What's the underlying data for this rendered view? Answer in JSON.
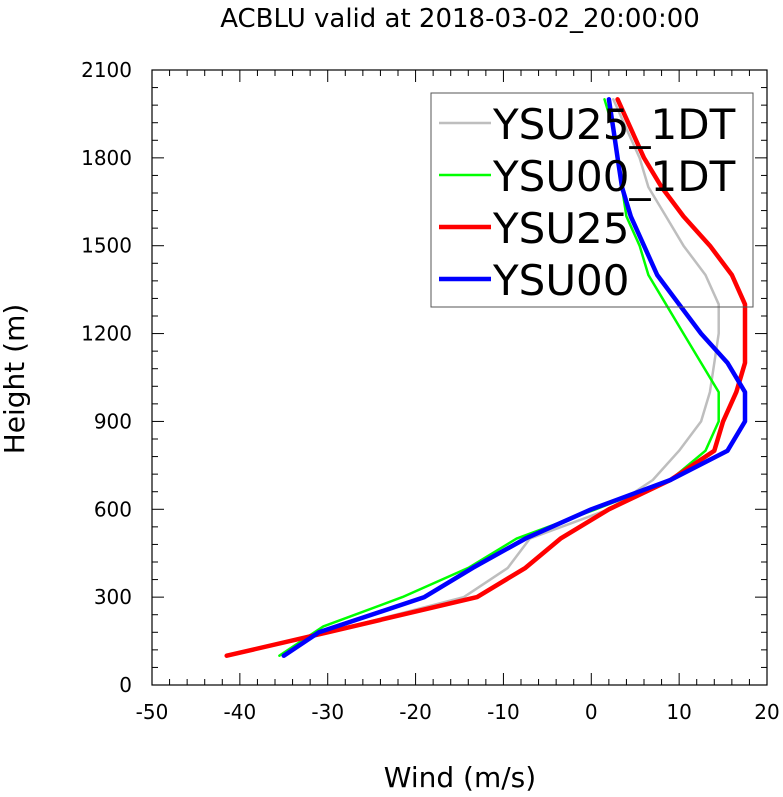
{
  "chart_data": {
    "type": "line",
    "title": "ACBLU valid at 2018-03-02_20:00:00",
    "xlabel": "Wind (m/s)",
    "ylabel": "Height (m)",
    "xlim": [
      -50,
      20
    ],
    "ylim": [
      0,
      2100
    ],
    "xticks": [
      -50,
      -40,
      -30,
      -20,
      -10,
      0,
      10,
      20
    ],
    "yticks": [
      0,
      300,
      600,
      900,
      1200,
      1500,
      1800,
      2100
    ],
    "legend_position": "top-right",
    "series": [
      {
        "name": "YSU25_1DT",
        "color": "#bebebe",
        "width": "thin",
        "points": [
          [
            -41.5,
            100
          ],
          [
            -30,
            180
          ],
          [
            -14.5,
            300
          ],
          [
            -9.5,
            400
          ],
          [
            -7,
            500
          ],
          [
            2,
            600
          ],
          [
            7,
            700
          ],
          [
            10,
            800
          ],
          [
            12.5,
            900
          ],
          [
            13.5,
            1000
          ],
          [
            14,
            1100
          ],
          [
            14.5,
            1200
          ],
          [
            14.5,
            1300
          ],
          [
            13,
            1400
          ],
          [
            10.5,
            1500
          ],
          [
            8.5,
            1600
          ],
          [
            6.5,
            1700
          ],
          [
            5.5,
            1800
          ],
          [
            4,
            1900
          ],
          [
            2.5,
            2000
          ]
        ]
      },
      {
        "name": "YSU00_1DT",
        "color": "#00ff00",
        "width": "thin",
        "points": [
          [
            -35.5,
            100
          ],
          [
            -30.5,
            200
          ],
          [
            -21.5,
            300
          ],
          [
            -14,
            400
          ],
          [
            -8.5,
            500
          ],
          [
            0.5,
            600
          ],
          [
            9,
            700
          ],
          [
            13,
            800
          ],
          [
            14.5,
            900
          ],
          [
            14.5,
            1000
          ],
          [
            12.5,
            1100
          ],
          [
            10.5,
            1200
          ],
          [
            8.5,
            1300
          ],
          [
            6.5,
            1400
          ],
          [
            5.5,
            1500
          ],
          [
            4,
            1600
          ],
          [
            3.5,
            1700
          ],
          [
            3,
            1800
          ],
          [
            2.5,
            1900
          ],
          [
            1.5,
            2000
          ]
        ]
      },
      {
        "name": "YSU25",
        "color": "#ff0000",
        "width": "thick",
        "points": [
          [
            -41.5,
            100
          ],
          [
            -30,
            180
          ],
          [
            -13,
            300
          ],
          [
            -7.5,
            400
          ],
          [
            -3.5,
            500
          ],
          [
            2,
            600
          ],
          [
            9,
            700
          ],
          [
            14,
            800
          ],
          [
            15,
            900
          ],
          [
            16.5,
            1000
          ],
          [
            17.5,
            1100
          ],
          [
            17.5,
            1200
          ],
          [
            17.5,
            1300
          ],
          [
            16,
            1400
          ],
          [
            13.5,
            1500
          ],
          [
            10.5,
            1600
          ],
          [
            8,
            1700
          ],
          [
            6,
            1800
          ],
          [
            4.5,
            1900
          ],
          [
            3,
            2000
          ]
        ]
      },
      {
        "name": "YSU00",
        "color": "#0000ff",
        "width": "thick",
        "points": [
          [
            -35,
            100
          ],
          [
            -31,
            180
          ],
          [
            -19,
            300
          ],
          [
            -13.5,
            400
          ],
          [
            -7.5,
            500
          ],
          [
            0,
            600
          ],
          [
            9,
            700
          ],
          [
            15.5,
            800
          ],
          [
            17.5,
            900
          ],
          [
            17.5,
            1000
          ],
          [
            15.5,
            1100
          ],
          [
            12.5,
            1200
          ],
          [
            10,
            1300
          ],
          [
            7.5,
            1400
          ],
          [
            6,
            1500
          ],
          [
            4.5,
            1600
          ],
          [
            3.5,
            1700
          ],
          [
            3,
            1800
          ],
          [
            2.5,
            1900
          ],
          [
            2,
            2000
          ]
        ]
      }
    ]
  }
}
